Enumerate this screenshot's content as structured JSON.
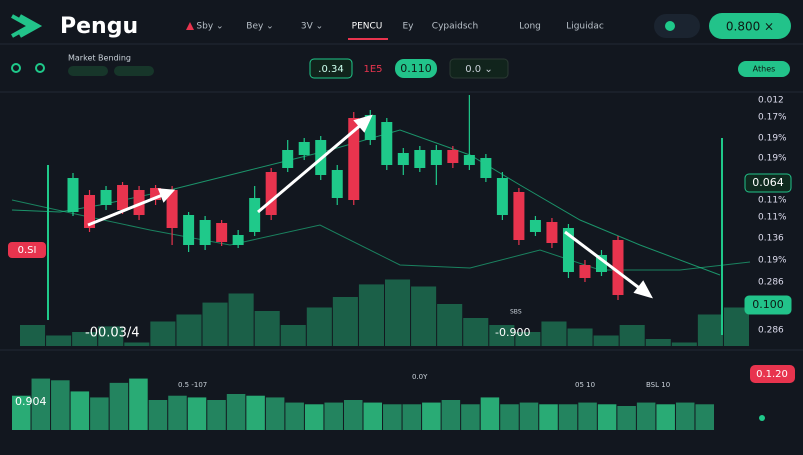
{
  "header": {
    "logo": "Pengu",
    "nav": [
      "Sby ⌄",
      "Bey ⌄",
      "3V ⌄",
      "PENCU",
      "Ey",
      "Cypaidsch",
      "Long",
      "Liguidac"
    ],
    "button": "0.800 ×"
  },
  "toolbar": {
    "market": "Market Bending",
    "pills": [
      ".0.34",
      "1E5",
      "0.110",
      "0.0 ⌄"
    ],
    "action": "Athes"
  },
  "price_axis": {
    "labels": [
      "0.012",
      "0.17%",
      "0.19%",
      "0.19%",
      "0.11%",
      "0.11%",
      "0.136",
      "0.19%",
      "0.286",
      "0.286"
    ],
    "tags": [
      "0.064",
      "0.100"
    ]
  },
  "overlay": {
    "left_tag": "0.SI",
    "low_label": "-00.03/4",
    "mid_label": "-0.900",
    "mid_small": "SBS"
  },
  "bottom_panel": {
    "left_label": "0.904",
    "labels": [
      "0.5 -107",
      "0.0Y",
      "05 10",
      "BSL 10"
    ],
    "tag": "0.1.20"
  },
  "chart_data": {
    "type": "candlestick",
    "up_color": "#1fc98a",
    "down_color": "#e8344e",
    "ylim": [
      0,
      258
    ],
    "open": [
      138,
      155,
      145,
      165,
      160,
      162,
      160,
      105,
      105,
      127,
      105,
      118,
      178,
      182,
      195,
      175,
      152,
      232,
      210,
      185,
      185,
      182,
      185,
      200,
      185,
      172,
      135,
      158,
      118,
      128,
      78,
      85,
      78,
      110
    ],
    "close": [
      172,
      122,
      160,
      140,
      135,
      150,
      122,
      135,
      130,
      108,
      115,
      152,
      135,
      200,
      208,
      210,
      180,
      150,
      235,
      228,
      197,
      200,
      200,
      187,
      195,
      192,
      172,
      110,
      130,
      107,
      122,
      72,
      95,
      55
    ],
    "high": [
      177,
      160,
      164,
      168,
      164,
      165,
      164,
      138,
      134,
      130,
      120,
      164,
      182,
      210,
      212,
      214,
      185,
      238,
      240,
      232,
      202,
      204,
      205,
      204,
      255,
      196,
      178,
      162,
      134,
      132,
      126,
      90,
      100,
      114
    ],
    "low": [
      134,
      118,
      140,
      136,
      130,
      145,
      105,
      98,
      100,
      104,
      102,
      114,
      130,
      178,
      190,
      170,
      145,
      145,
      205,
      180,
      175,
      178,
      165,
      182,
      180,
      168,
      130,
      105,
      114,
      102,
      72,
      68,
      74,
      50
    ],
    "volume": {
      "color": "#1f7a57",
      "ylim": [
        0,
        100
      ],
      "values": [
        30,
        15,
        20,
        28,
        5,
        35,
        45,
        62,
        75,
        50,
        30,
        55,
        70,
        88,
        95,
        85,
        60,
        40,
        30,
        20,
        35,
        25,
        15,
        30,
        10,
        5,
        45,
        55
      ]
    },
    "panel_volume": {
      "color": "#2bb37a",
      "ylim": [
        0,
        70
      ],
      "values": [
        40,
        60,
        58,
        45,
        38,
        55,
        60,
        35,
        40,
        38,
        35,
        42,
        40,
        38,
        32,
        30,
        32,
        35,
        32,
        30,
        30,
        32,
        35,
        30,
        38,
        30,
        32,
        30,
        30,
        32,
        30,
        28,
        32,
        30,
        32,
        30
      ]
    }
  }
}
